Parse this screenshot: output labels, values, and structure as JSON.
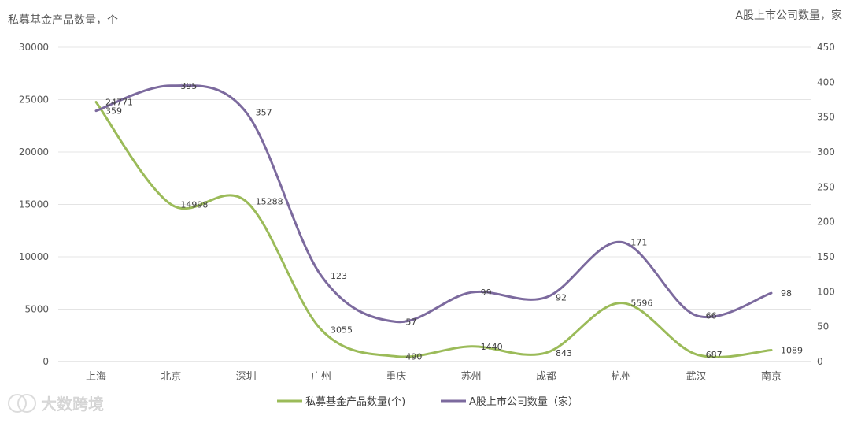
{
  "chart_data": {
    "type": "line",
    "left_axis_title": "私募基金产品数量，个",
    "right_axis_title": "A股上市公司数量，家",
    "categories": [
      "上海",
      "北京",
      "深圳",
      "广州",
      "重庆",
      "苏州",
      "成都",
      "杭州",
      "武汉",
      "南京"
    ],
    "y_left": {
      "min": 0,
      "max": 30000,
      "ticks": [
        "0",
        "5000",
        "10000",
        "15000",
        "20000",
        "25000",
        "30000"
      ]
    },
    "y_right": {
      "min": 0,
      "max": 450,
      "ticks": [
        "0",
        "50",
        "100",
        "150",
        "200",
        "250",
        "300",
        "350",
        "400",
        "450"
      ]
    },
    "grid": true,
    "legend_position": "bottom",
    "series": [
      {
        "name": "私募基金产品数量(个)",
        "axis": "left",
        "color": "#9bbb59",
        "values": [
          24771,
          14998,
          15288,
          3055,
          490,
          1440,
          843,
          5596,
          687,
          1089
        ],
        "labels": [
          "24771",
          "14998",
          "15288",
          "3055",
          "490",
          "1440",
          "843",
          "5596",
          "687",
          "1089"
        ]
      },
      {
        "name": "A股上市公司数量（家）",
        "axis": "right",
        "color": "#7c6a9e",
        "values": [
          359,
          395,
          357,
          123,
          57,
          99,
          92,
          171,
          66,
          98
        ],
        "labels": [
          "359",
          "395",
          "357",
          "123",
          "57",
          "99",
          "92",
          "171",
          "66",
          "98"
        ]
      }
    ]
  },
  "watermark": {
    "text": "大数跨境"
  }
}
